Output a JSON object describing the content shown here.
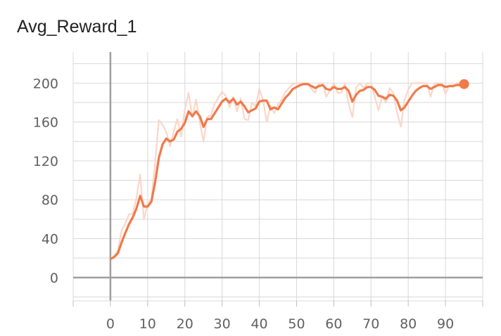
{
  "chart_data": {
    "type": "line",
    "title": "Avg_Reward_1",
    "xlabel": "",
    "ylabel": "",
    "xlim": [
      -10,
      100
    ],
    "ylim": [
      -24,
      232
    ],
    "x_ticks": [
      "0",
      "10",
      "20",
      "30",
      "40",
      "50",
      "60",
      "70",
      "80",
      "90"
    ],
    "y_ticks": [
      "0",
      "40",
      "80",
      "120",
      "160",
      "200"
    ],
    "grid": true,
    "colors": {
      "smoothed": "#f07a4a",
      "raw": "#fbd6c8",
      "grid": "#d8d8d8",
      "zero_axis": "#9e9e9e"
    },
    "series": [
      {
        "x": [
          0,
          1,
          2,
          3,
          4,
          5,
          6,
          7,
          8,
          9,
          10,
          11,
          12,
          13,
          14,
          15,
          16,
          17,
          18,
          19,
          20,
          21,
          22,
          23,
          24,
          25,
          26,
          27,
          28,
          29,
          30,
          31,
          32,
          33,
          34,
          35,
          36,
          37,
          38,
          39,
          40,
          41,
          42,
          43,
          44,
          45,
          46,
          47,
          48,
          49,
          50,
          51,
          52,
          53,
          54,
          55,
          56,
          57,
          58,
          59,
          60,
          61,
          62,
          63,
          64,
          65,
          66,
          67,
          68,
          69,
          70,
          71,
          72,
          73,
          74,
          75,
          76,
          77,
          78,
          79,
          80,
          81,
          82,
          83,
          84,
          85,
          86,
          87,
          88,
          89,
          90,
          91,
          92,
          93,
          94,
          95
        ],
        "values": [
          19,
          21,
          25,
          36,
          46,
          55,
          62,
          71,
          84,
          73,
          73,
          78,
          98,
          123,
          137,
          143,
          140,
          142,
          150,
          153,
          159,
          171,
          166,
          171,
          166,
          155,
          163,
          163,
          169,
          175,
          181,
          184,
          180,
          184,
          178,
          181,
          176,
          170,
          172,
          174,
          181,
          182,
          182,
          173,
          175,
          173,
          179,
          185,
          189,
          194,
          196,
          198,
          199,
          199,
          197,
          195,
          197,
          198,
          194,
          193,
          196,
          194,
          194,
          196,
          192,
          181,
          188,
          192,
          193,
          196,
          196,
          193,
          187,
          186,
          184,
          188,
          187,
          182,
          172,
          175,
          181,
          187,
          192,
          195,
          197,
          197,
          194,
          196,
          198,
          198,
          196,
          197,
          197,
          198,
          198,
          199
        ]
      },
      {
        "x": [
          0,
          1,
          2,
          3,
          4,
          5,
          6,
          7,
          8,
          9,
          10,
          11,
          12,
          13,
          14,
          15,
          16,
          17,
          18,
          19,
          20,
          21,
          22,
          23,
          24,
          25,
          26,
          27,
          28,
          29,
          30,
          31,
          32,
          33,
          34,
          35,
          36,
          37,
          38,
          39,
          40,
          41,
          42,
          43,
          44,
          45,
          46,
          47,
          48,
          49,
          50,
          51,
          52,
          53,
          54,
          55,
          56,
          57,
          58,
          59,
          60,
          61,
          62,
          63,
          64,
          65,
          66,
          67,
          68,
          69,
          70,
          71,
          72,
          73,
          74,
          75,
          76,
          77,
          78,
          79,
          80,
          81,
          82,
          83,
          84,
          85,
          86,
          87,
          88,
          89,
          90,
          91,
          92,
          93,
          94,
          95
        ],
        "values": [
          19,
          22,
          28,
          48,
          56,
          65,
          66,
          82,
          106,
          60,
          76,
          80,
          118,
          162,
          157,
          150,
          135,
          150,
          163,
          145,
          173,
          190,
          165,
          183,
          160,
          140,
          165,
          167,
          179,
          185,
          191,
          187,
          175,
          186,
          171,
          184,
          163,
          162,
          180,
          176,
          194,
          183,
          160,
          177,
          169,
          178,
          183,
          191,
          195,
          199,
          200,
          200,
          200,
          200,
          194,
          190,
          200,
          200,
          186,
          193,
          200,
          190,
          190,
          200,
          178,
          165,
          195,
          200,
          195,
          200,
          200,
          186,
          172,
          186,
          180,
          195,
          190,
          170,
          155,
          183,
          193,
          200,
          200,
          200,
          200,
          200,
          186,
          199,
          200,
          200,
          189,
          197,
          196,
          200,
          200,
          200
        ]
      }
    ]
  }
}
